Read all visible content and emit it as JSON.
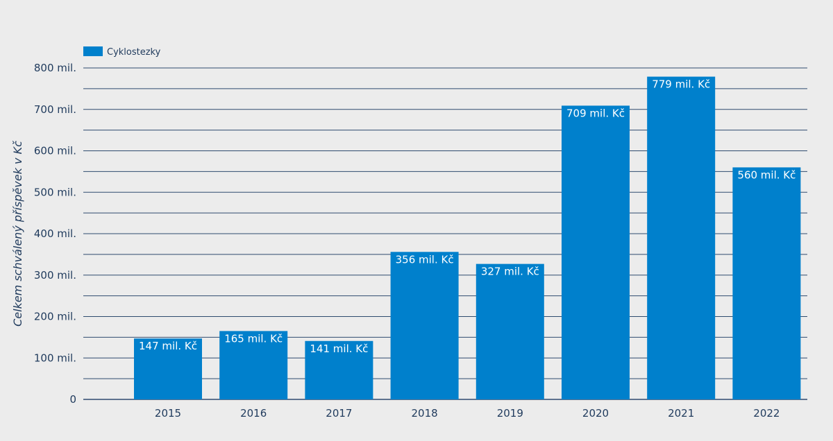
{
  "chart_data": {
    "type": "bar",
    "categories": [
      "2015",
      "2016",
      "2017",
      "2018",
      "2019",
      "2020",
      "2021",
      "2022"
    ],
    "series": [
      {
        "name": "Cyklostezky",
        "values": [
          147,
          165,
          141,
          356,
          327,
          709,
          779,
          560
        ],
        "data_labels": [
          "147 mil. Kč",
          "165 mil. Kč",
          "141 mil. Kč",
          "356 mil. Kč",
          "327 mil. Kč",
          "709 mil. Kč",
          "779 mil. Kč",
          "560 mil. Kč"
        ]
      }
    ],
    "ylabel": "Celkem schválený příspěvek v Kč",
    "xlabel": "",
    "ylim": [
      0,
      800
    ],
    "yticks": [
      0,
      100,
      200,
      300,
      400,
      500,
      600,
      700,
      800
    ],
    "ytick_labels": [
      "0",
      "100 mil.",
      "200 mil.",
      "300 mil.",
      "400 mil.",
      "500 mil.",
      "600 mil.",
      "700 mil.",
      "800 mil."
    ],
    "minor_grid_step": 50,
    "grid": true,
    "legend_position": "top-left"
  },
  "colors": {
    "bar": "#0080cc",
    "grid": "#2e4a6e",
    "text": "#1f3a5c",
    "background": "#ececec"
  }
}
